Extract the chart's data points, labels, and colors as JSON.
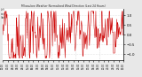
{
  "title": "Milwaukee Weather Normalized Wind Direction (Last 24 Hours)",
  "background_color": "#e8e8e8",
  "plot_bg_color": "#ffffff",
  "line_color": "#cc0000",
  "line_width": 0.4,
  "ylim": [
    -1.3,
    1.3
  ],
  "yticks": [
    -1.0,
    -0.5,
    0.0,
    0.5,
    1.0
  ],
  "grid_color": "#bbbbbb",
  "num_points": 288,
  "seed": 42,
  "num_xgrid": 4
}
